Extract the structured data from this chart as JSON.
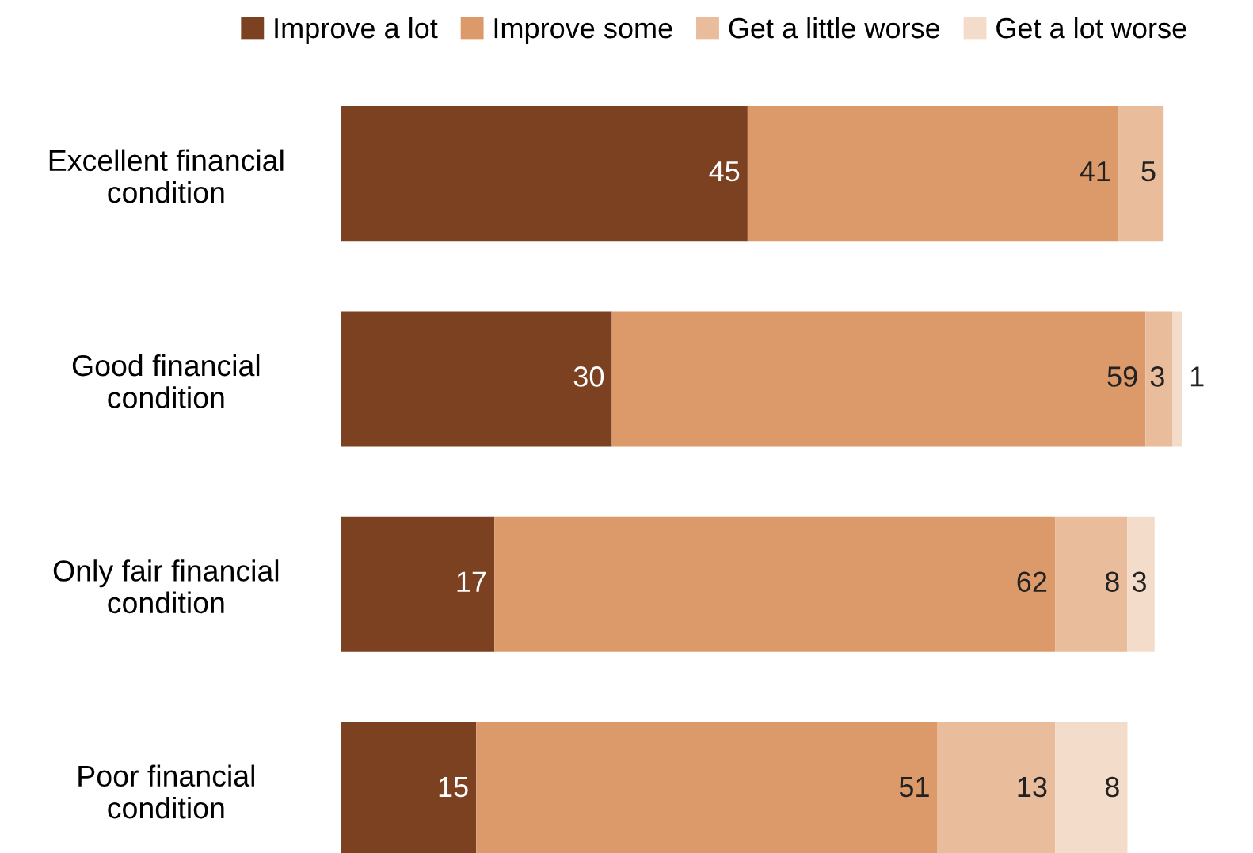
{
  "chart_data": {
    "type": "bar",
    "orientation": "horizontal",
    "stacked": true,
    "data_labels": true,
    "legend": "top",
    "tick_labels": "y",
    "grid": false,
    "categories": [
      "Excellent financial\ncondition",
      "Good financial\ncondition",
      "Only fair financial\ncondition",
      "Poor financial\ncondition"
    ],
    "series": [
      {
        "name": "Improve a lot",
        "color": "#7b4120",
        "values": [
          45,
          30,
          17,
          15
        ]
      },
      {
        "name": "Improve some",
        "color": "#dc9a6b",
        "values": [
          41,
          59,
          62,
          51
        ]
      },
      {
        "name": "Get a little worse",
        "color": "#e9bc9c",
        "values": [
          5,
          3,
          8,
          13
        ]
      },
      {
        "name": "Get a lot worse",
        "color": "#f4dccb",
        "values": [
          null,
          1,
          3,
          8
        ]
      }
    ]
  }
}
